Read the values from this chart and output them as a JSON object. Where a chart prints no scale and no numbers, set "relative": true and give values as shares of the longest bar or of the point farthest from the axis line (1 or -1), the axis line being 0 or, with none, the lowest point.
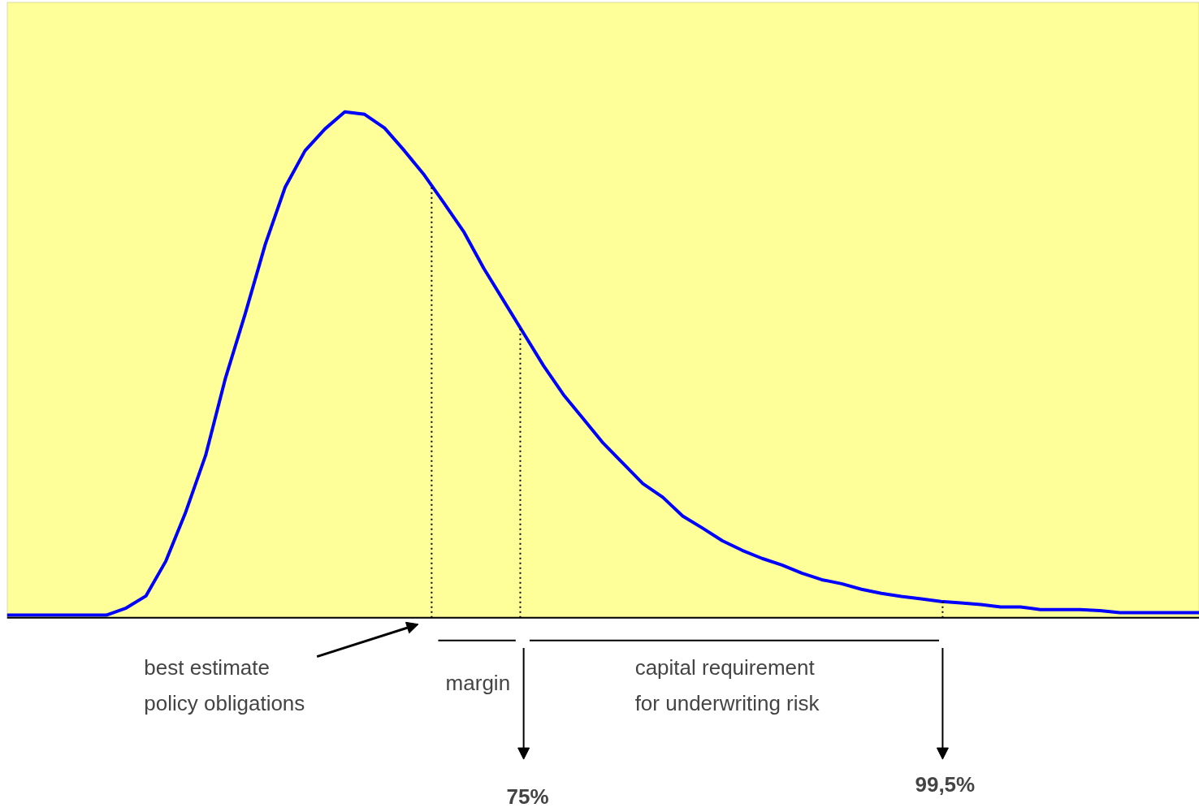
{
  "chart_data": {
    "type": "line",
    "relative": true,
    "categories": [
      null,
      null,
      null,
      null,
      null,
      null,
      null,
      null,
      null,
      null,
      null,
      null,
      null,
      null,
      null,
      null,
      null,
      null,
      null,
      null,
      null,
      null,
      null,
      null,
      null,
      null,
      null,
      null,
      null,
      null,
      null,
      null,
      null,
      null,
      null,
      null,
      null,
      null,
      null,
      null,
      null,
      null,
      null,
      null,
      null,
      null,
      null,
      null,
      null,
      null,
      null,
      null,
      null,
      null,
      null,
      null,
      null,
      null,
      null,
      null,
      null
    ],
    "series": [
      {
        "color": "#0000ff",
        "values": [
          0.005,
          0.005,
          0.005,
          0.005,
          0.005,
          0.005,
          0.019,
          0.043,
          0.112,
          0.209,
          0.321,
          0.474,
          0.602,
          0.738,
          0.851,
          0.923,
          0.966,
          1,
          0.995,
          0.968,
          0.923,
          0.875,
          0.819,
          0.762,
          0.69,
          0.626,
          0.562,
          0.498,
          0.441,
          0.393,
          0.345,
          0.305,
          0.265,
          0.238,
          0.201,
          0.177,
          0.152,
          0.133,
          0.117,
          0.104,
          0.088,
          0.075,
          0.067,
          0.056,
          0.048,
          0.042,
          0.037,
          0.032,
          0.029,
          0.026,
          0.021,
          0.021,
          0.016,
          0.016,
          0.016,
          0.014,
          0.01,
          0.01,
          0.01,
          0.01,
          0.01
        ]
      }
    ],
    "annotations": [
      "best estimate\npolicy obligations",
      "margin",
      "capital requirement\nfor underwriting risk",
      "75%",
      "99,5%"
    ]
  }
}
